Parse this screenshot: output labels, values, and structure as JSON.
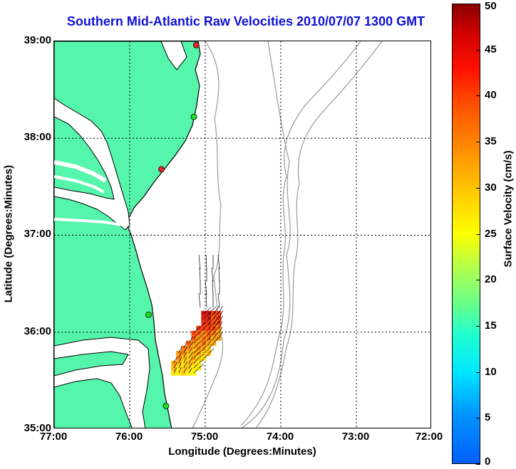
{
  "title": "Southern Mid-Atlantic Raw Velocities 2010/07/07 1300 GMT",
  "xlabel": "Longitude (Degrees:Minutes)",
  "ylabel": "Latitude (Degrees:Minutes)",
  "colorbar": {
    "label": "Surface Velocity (cm/s)",
    "min": 0,
    "max": 50,
    "ticks": [
      "0",
      "5",
      "10",
      "15",
      "20",
      "25",
      "30",
      "35",
      "40",
      "45",
      "50"
    ]
  },
  "axes": {
    "lon_ticks": [
      "77:00",
      "76:00",
      "75:00",
      "74:00",
      "73:00",
      "72:00"
    ],
    "lat_ticks": [
      "39:00",
      "38:00",
      "37:00",
      "36:00",
      "35:00"
    ],
    "lon_range": [
      -77,
      -72
    ],
    "lat_range": [
      35,
      39
    ],
    "grid": "dotted"
  },
  "colors": {
    "land": "#55f5ab",
    "coast": "#000000",
    "bathymetry": "#999999",
    "station_active": "#22dd22",
    "station_inactive": "#ee2222",
    "title": "#1010d8"
  },
  "stations": [
    {
      "lon": -75.12,
      "lat": 38.96,
      "status": "inactive"
    },
    {
      "lon": -75.15,
      "lat": 38.22,
      "status": "active"
    },
    {
      "lon": -75.58,
      "lat": 37.68,
      "status": "inactive"
    },
    {
      "lon": -75.75,
      "lat": 36.18,
      "status": "active"
    },
    {
      "lon": -75.52,
      "lat": 35.24,
      "status": "active"
    }
  ],
  "velocity_field": {
    "region_lon": [
      -75.45,
      -74.8
    ],
    "region_lat": [
      35.58,
      36.22
    ],
    "speed_range_cms": [
      15,
      50
    ]
  }
}
